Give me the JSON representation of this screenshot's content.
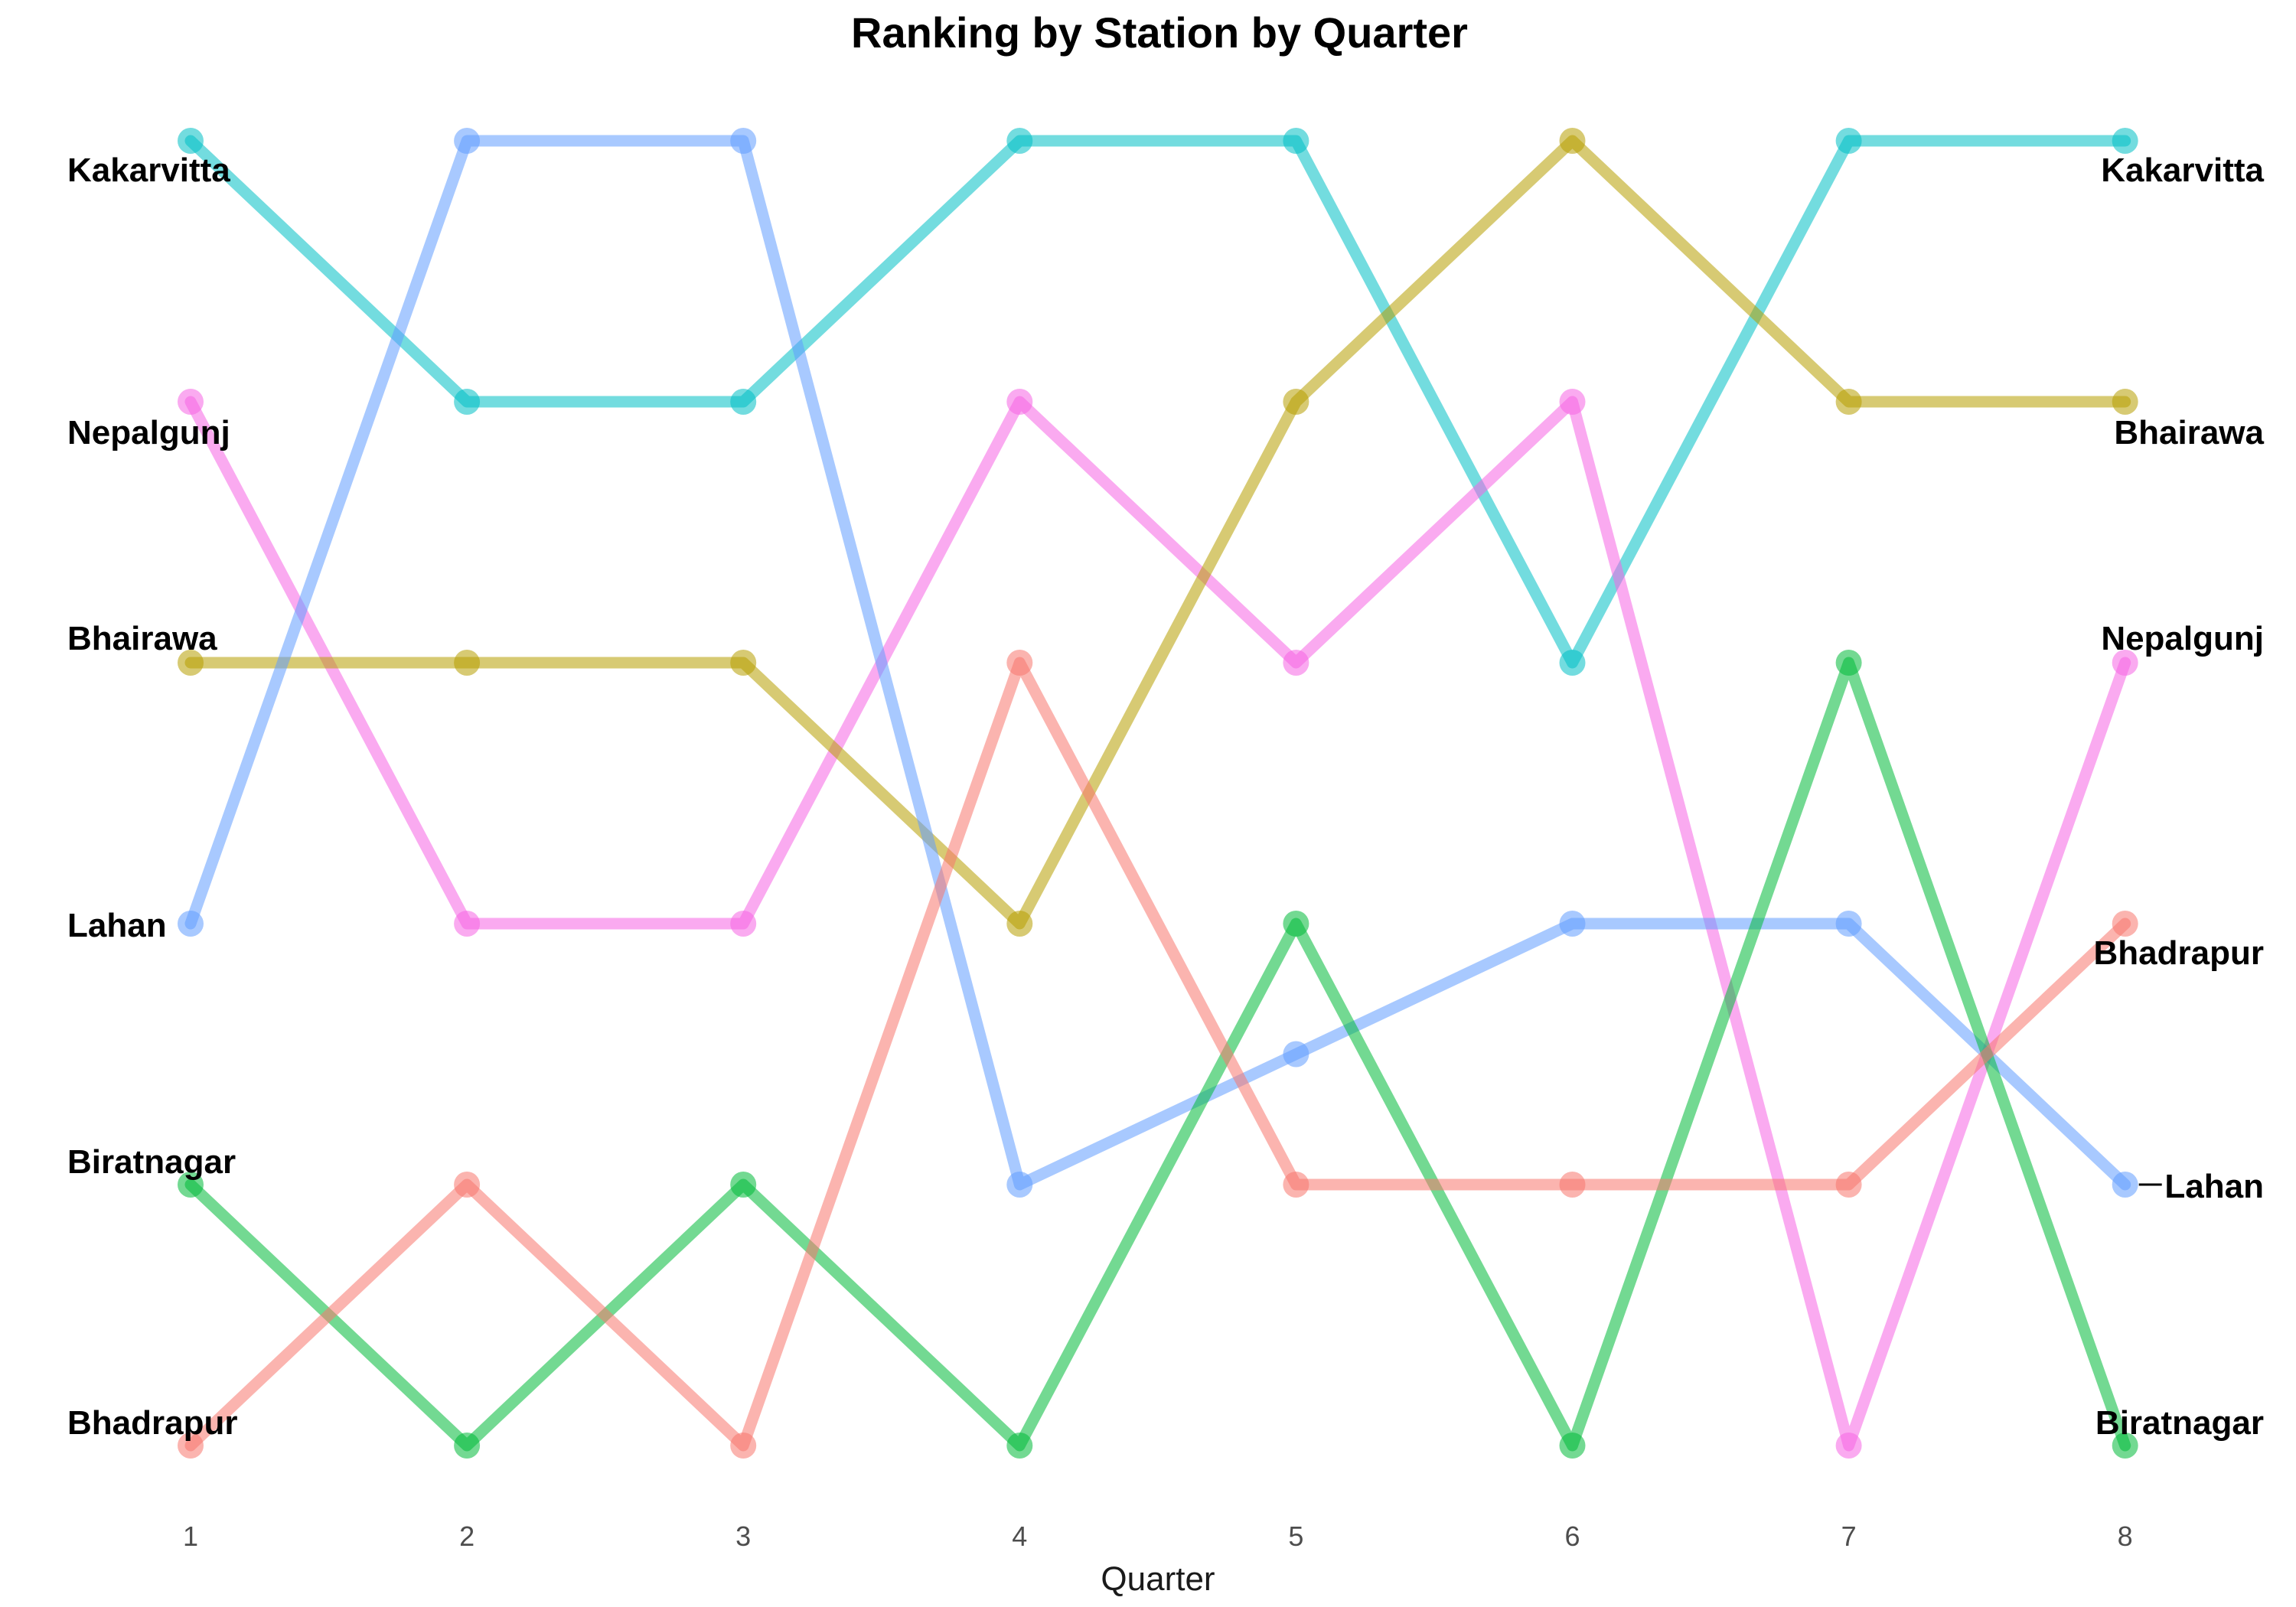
{
  "chart_data": {
    "type": "line",
    "title": "Ranking by Station by Quarter",
    "xlabel": "Quarter",
    "ylabel": "",
    "x": [
      1,
      2,
      3,
      4,
      5,
      6,
      7,
      8
    ],
    "x_tick_labels": [
      "1",
      "2",
      "3",
      "4",
      "5",
      "6",
      "7",
      "8"
    ],
    "y_axis": {
      "direction": "reversed",
      "range": [
        1,
        6
      ],
      "tick_labels_shown": false
    },
    "grid": false,
    "legend": "none (direct labels at both ends)",
    "series": [
      {
        "name": "Kakarvitta",
        "color": "#00BFC4",
        "values": [
          1,
          2,
          2,
          1,
          1,
          3,
          1,
          1
        ]
      },
      {
        "name": "Nepalgunj",
        "color": "#F564E3",
        "values": [
          2,
          4,
          4,
          2,
          3,
          2,
          6,
          3
        ]
      },
      {
        "name": "Bhairawa",
        "color": "#B79F00",
        "values": [
          3,
          3,
          3,
          4,
          2,
          1,
          2,
          2
        ]
      },
      {
        "name": "Lahan",
        "color": "#619CFF",
        "values": [
          4,
          1,
          1,
          5,
          4.5,
          4,
          4,
          5
        ]
      },
      {
        "name": "Biratnagar",
        "color": "#00BA38",
        "values": [
          5,
          6,
          5,
          6,
          4,
          6,
          3,
          6
        ]
      },
      {
        "name": "Bhadrapur",
        "color": "#F8766D",
        "values": [
          6,
          5,
          6,
          3,
          5,
          5,
          5,
          4
        ]
      }
    ],
    "left_labels": [
      {
        "text": "Kakarvitta",
        "rank": 1
      },
      {
        "text": "Nepalgunj",
        "rank": 2
      },
      {
        "text": "Bhairawa",
        "rank": 3
      },
      {
        "text": "Lahan",
        "rank": 4
      },
      {
        "text": "Biratnagar",
        "rank": 5
      },
      {
        "text": "Bhadrapur",
        "rank": 6
      }
    ],
    "right_labels": [
      {
        "text": "Kakarvitta",
        "rank": 1
      },
      {
        "text": "Bhairawa",
        "rank": 2
      },
      {
        "text": "Nepalgunj",
        "rank": 3
      },
      {
        "text": "Bhadrapur",
        "rank": 4
      },
      {
        "text": "Lahan",
        "rank": 5
      },
      {
        "text": "Biratnagar",
        "rank": 6
      }
    ]
  }
}
